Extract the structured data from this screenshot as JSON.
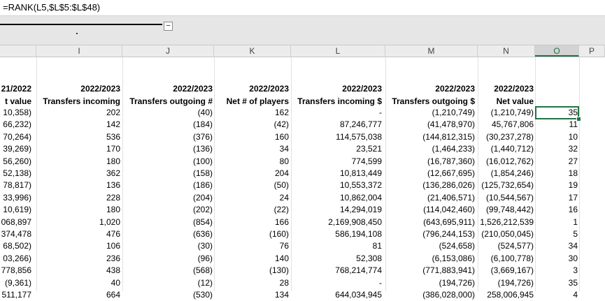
{
  "formula_bar": {
    "formula": "=RANK(L5,$L$5:$L$48)"
  },
  "ribbon": {
    "collapse_label": "–"
  },
  "column_headers": [
    "I",
    "J",
    "K",
    "L",
    "M",
    "N",
    "O",
    "P"
  ],
  "selected_column": "O",
  "header_rows": [
    [
      "21/2022",
      "2022/2023",
      "2022/2023",
      "2022/2023",
      "2022/2023",
      "2022/2023",
      "2022/2023",
      ""
    ],
    [
      "t value",
      "Transfers incoming",
      "Transfers outgoing #",
      "Net # of players",
      "Transfers incoming $",
      "Transfers outgoing $",
      "Net value",
      ""
    ]
  ],
  "data_rows": [
    [
      "10,358)",
      "202",
      "(40)",
      "162",
      "-",
      "(1,210,749)",
      "(1,210,749)",
      "35"
    ],
    [
      "66,232)",
      "142",
      "(184)",
      "(42)",
      "87,246,777",
      "(41,478,970)",
      "45,767,806",
      "11"
    ],
    [
      "70,264)",
      "536",
      "(376)",
      "160",
      "114,575,038",
      "(144,812,315)",
      "(30,237,278)",
      "10"
    ],
    [
      "39,269)",
      "170",
      "(136)",
      "34",
      "23,521",
      "(1,464,233)",
      "(1,440,712)",
      "32"
    ],
    [
      "56,260)",
      "180",
      "(100)",
      "80",
      "774,599",
      "(16,787,360)",
      "(16,012,762)",
      "27"
    ],
    [
      "52,138)",
      "362",
      "(158)",
      "204",
      "10,813,449",
      "(12,667,695)",
      "(1,854,246)",
      "18"
    ],
    [
      "78,817)",
      "136",
      "(186)",
      "(50)",
      "10,553,372",
      "(136,286,026)",
      "(125,732,654)",
      "19"
    ],
    [
      "33,996)",
      "228",
      "(204)",
      "24",
      "10,862,004",
      "(21,406,571)",
      "(10,544,567)",
      "17"
    ],
    [
      "10,619)",
      "180",
      "(202)",
      "(22)",
      "14,294,019",
      "(114,042,460)",
      "(99,748,442)",
      "16"
    ],
    [
      "068,897",
      "1,020",
      "(854)",
      "166",
      "2,169,908,450",
      "(643,695,911)",
      "1,526,212,539",
      "1"
    ],
    [
      "374,478",
      "476",
      "(636)",
      "(160)",
      "586,194,108",
      "(796,244,153)",
      "(210,050,045)",
      "5"
    ],
    [
      "68,502)",
      "106",
      "(30)",
      "76",
      "81",
      "(524,658)",
      "(524,577)",
      "34"
    ],
    [
      "03,266)",
      "236",
      "(96)",
      "140",
      "52,308",
      "(6,153,086)",
      "(6,100,778)",
      "30"
    ],
    [
      "778,856",
      "438",
      "(568)",
      "(130)",
      "768,214,774",
      "(771,883,941)",
      "(3,669,167)",
      "3"
    ],
    [
      "(9,361)",
      "40",
      "(12)",
      "28",
      "-",
      "(194,726)",
      "(194,726)",
      "35"
    ],
    [
      "511,177",
      "664",
      "(530)",
      "134",
      "644,034,945",
      "(386,028,000)",
      "258,006,945",
      "4"
    ]
  ]
}
